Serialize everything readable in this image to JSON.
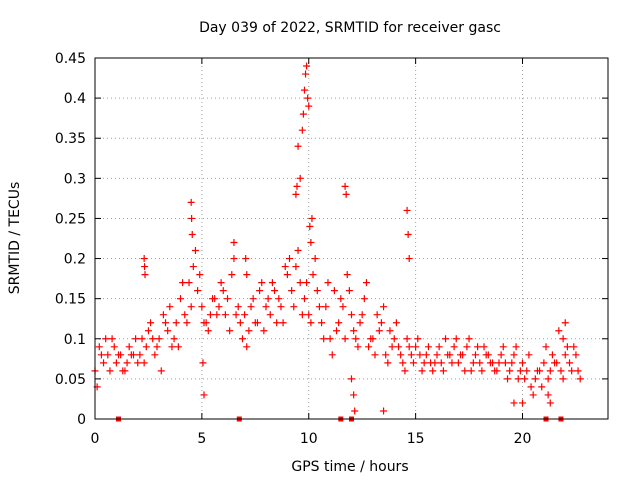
{
  "chart_data": {
    "type": "scatter",
    "title": "Day 039 of 2022, SRMTID for receiver gasc",
    "xlabel": "GPS time / hours",
    "ylabel": "SRMTID / TECUs",
    "xlim": [
      0,
      24
    ],
    "ylim": [
      0,
      0.45
    ],
    "grid": true,
    "marker": "+",
    "color": "#ff0000",
    "x_ticks": [
      0,
      5,
      10,
      15,
      20
    ],
    "x_tick_labels": [
      "0",
      "5",
      "10",
      "15",
      "20"
    ],
    "y_ticks": [
      0,
      0.05,
      0.1,
      0.15,
      0.2,
      0.25,
      0.3,
      0.35,
      0.4,
      0.45
    ],
    "y_tick_labels": [
      "0",
      "0.05",
      "0.1",
      "0.15",
      "0.2",
      "0.25",
      "0.3",
      "0.35",
      "0.4",
      "0.45"
    ],
    "series": [
      {
        "name": "SRMTID",
        "x": [
          0.0,
          0.2,
          0.4,
          0.6,
          0.8,
          1.0,
          1.2,
          1.4,
          1.6,
          1.8,
          2.0,
          2.2,
          2.4,
          2.6,
          2.8,
          3.0,
          3.2,
          3.4,
          3.6,
          3.8,
          4.0,
          4.2,
          4.4,
          4.6,
          4.8,
          5.0,
          5.2,
          5.4,
          5.6,
          5.8,
          6.0,
          6.2,
          6.4,
          6.6,
          6.8,
          7.0,
          7.2,
          7.4,
          7.6,
          7.8,
          8.0,
          8.2,
          8.4,
          8.6,
          8.8,
          9.0,
          9.2,
          9.4,
          9.6,
          9.8,
          10.0,
          10.2,
          10.4,
          10.6,
          10.8,
          11.0,
          11.2,
          11.4,
          11.6,
          11.8,
          12.0,
          12.2,
          12.4,
          12.6,
          12.8,
          13.0,
          13.2,
          13.4,
          13.6,
          13.8,
          14.0,
          14.2,
          14.4,
          14.6,
          14.8,
          15.0,
          15.2,
          15.4,
          15.6,
          15.8,
          16.0,
          16.2,
          16.4,
          16.6,
          16.8,
          17.0,
          17.2,
          17.4,
          17.6,
          17.8,
          18.0,
          18.2,
          18.4,
          18.6,
          18.8,
          19.0,
          19.2,
          19.4,
          19.6,
          19.8,
          20.0,
          20.2,
          20.4,
          20.6,
          20.8,
          21.0,
          21.2,
          21.4,
          21.6,
          21.8,
          22.0,
          22.2,
          22.4,
          22.6,
          0.1,
          0.3,
          0.5,
          0.7,
          0.9,
          1.1,
          1.3,
          1.5,
          1.7,
          1.9,
          2.1,
          2.3,
          2.5,
          2.7,
          2.9,
          3.1,
          3.3,
          3.5,
          3.7,
          3.9,
          4.1,
          4.3,
          4.5,
          4.7,
          4.9,
          5.1,
          5.3,
          5.5,
          5.7,
          5.9,
          6.1,
          6.3,
          6.5,
          6.7,
          6.9,
          7.1,
          7.3,
          7.5,
          7.7,
          7.9,
          8.1,
          8.3,
          8.5,
          8.7,
          8.9,
          9.1,
          9.3,
          9.5,
          9.7,
          9.9,
          10.1,
          10.3,
          10.5,
          10.7,
          10.9,
          11.1,
          11.3,
          11.5,
          11.7,
          11.9,
          12.1,
          12.3,
          12.5,
          12.7,
          12.9,
          13.1,
          13.3,
          13.5,
          13.7,
          13.9,
          14.1,
          14.3,
          14.5,
          14.7,
          14.9,
          15.1,
          15.3,
          15.5,
          15.7,
          15.9,
          16.1,
          16.3,
          16.5,
          16.7,
          16.9,
          17.1,
          17.3,
          17.5,
          17.7,
          17.9,
          18.1,
          18.3,
          18.5,
          18.7,
          18.9,
          19.1,
          19.3,
          19.5,
          19.7,
          19.9,
          20.1,
          20.3,
          20.5,
          20.7,
          20.9,
          21.1,
          21.3,
          21.5,
          21.7,
          21.9,
          22.1,
          22.3,
          22.5,
          22.7,
          2.3,
          2.32,
          2.34,
          4.5,
          4.52,
          4.55,
          5.05,
          5.1,
          6.5,
          7.05,
          7.1,
          9.4,
          9.45,
          9.5,
          9.6,
          9.7,
          9.75,
          9.8,
          9.85,
          9.9,
          9.95,
          10.0,
          10.05,
          10.1,
          10.15,
          11.7,
          11.75,
          12.1,
          12.15,
          14.6,
          14.65,
          14.7,
          12.0,
          13.5,
          19.6,
          20.0,
          21.2,
          21.3,
          21.9,
          22.0
        ],
        "y": [
          0.06,
          0.09,
          0.07,
          0.08,
          0.1,
          0.07,
          0.08,
          0.06,
          0.09,
          0.08,
          0.07,
          0.1,
          0.09,
          0.12,
          0.08,
          0.1,
          0.13,
          0.11,
          0.09,
          0.12,
          0.15,
          0.13,
          0.17,
          0.19,
          0.16,
          0.14,
          0.12,
          0.13,
          0.15,
          0.14,
          0.16,
          0.15,
          0.18,
          0.13,
          0.12,
          0.13,
          0.11,
          0.15,
          0.12,
          0.17,
          0.14,
          0.13,
          0.16,
          0.15,
          0.12,
          0.18,
          0.16,
          0.19,
          0.17,
          0.15,
          0.13,
          0.18,
          0.16,
          0.12,
          0.14,
          0.1,
          0.16,
          0.12,
          0.14,
          0.18,
          0.13,
          0.1,
          0.12,
          0.15,
          0.09,
          0.1,
          0.13,
          0.12,
          0.08,
          0.11,
          0.1,
          0.09,
          0.07,
          0.1,
          0.08,
          0.09,
          0.08,
          0.07,
          0.09,
          0.06,
          0.08,
          0.07,
          0.1,
          0.08,
          0.09,
          0.07,
          0.08,
          0.09,
          0.06,
          0.08,
          0.07,
          0.09,
          0.08,
          0.07,
          0.06,
          0.08,
          0.07,
          0.06,
          0.08,
          0.05,
          0.07,
          0.06,
          0.04,
          0.05,
          0.06,
          0.07,
          0.05,
          0.08,
          0.07,
          0.06,
          0.08,
          0.07,
          0.09,
          0.06,
          0.04,
          0.08,
          0.1,
          0.06,
          0.09,
          0.08,
          0.06,
          0.07,
          0.08,
          0.1,
          0.08,
          0.07,
          0.11,
          0.1,
          0.09,
          0.06,
          0.12,
          0.14,
          0.1,
          0.09,
          0.17,
          0.12,
          0.14,
          0.21,
          0.18,
          0.12,
          0.11,
          0.15,
          0.13,
          0.17,
          0.13,
          0.11,
          0.2,
          0.14,
          0.1,
          0.09,
          0.14,
          0.12,
          0.16,
          0.11,
          0.15,
          0.17,
          0.12,
          0.14,
          0.19,
          0.2,
          0.14,
          0.21,
          0.13,
          0.17,
          0.12,
          0.2,
          0.14,
          0.1,
          0.17,
          0.08,
          0.11,
          0.15,
          0.1,
          0.16,
          0.11,
          0.09,
          0.13,
          0.17,
          0.1,
          0.08,
          0.11,
          0.14,
          0.07,
          0.09,
          0.12,
          0.08,
          0.06,
          0.09,
          0.07,
          0.1,
          0.06,
          0.08,
          0.07,
          0.07,
          0.09,
          0.06,
          0.08,
          0.07,
          0.1,
          0.08,
          0.06,
          0.1,
          0.07,
          0.09,
          0.06,
          0.08,
          0.07,
          0.06,
          0.07,
          0.09,
          0.05,
          0.07,
          0.09,
          0.06,
          0.05,
          0.08,
          0.03,
          0.06,
          0.04,
          0.09,
          0.06,
          0.07,
          0.11,
          0.05,
          0.09,
          0.06,
          0.08,
          0.05,
          0.2,
          0.19,
          0.18,
          0.27,
          0.25,
          0.23,
          0.07,
          0.03,
          0.22,
          0.2,
          0.18,
          0.28,
          0.29,
          0.34,
          0.3,
          0.36,
          0.38,
          0.41,
          0.43,
          0.44,
          0.4,
          0.39,
          0.24,
          0.22,
          0.25,
          0.29,
          0.28,
          0.03,
          0.01,
          0.26,
          0.23,
          0.2,
          0.05,
          0.01,
          0.02,
          0.02,
          0.03,
          0.02,
          0.1,
          0.12
        ]
      }
    ],
    "axis_markers_x": [
      1.1,
      6.75,
      11.5,
      12.0,
      21.1,
      21.8
    ]
  }
}
